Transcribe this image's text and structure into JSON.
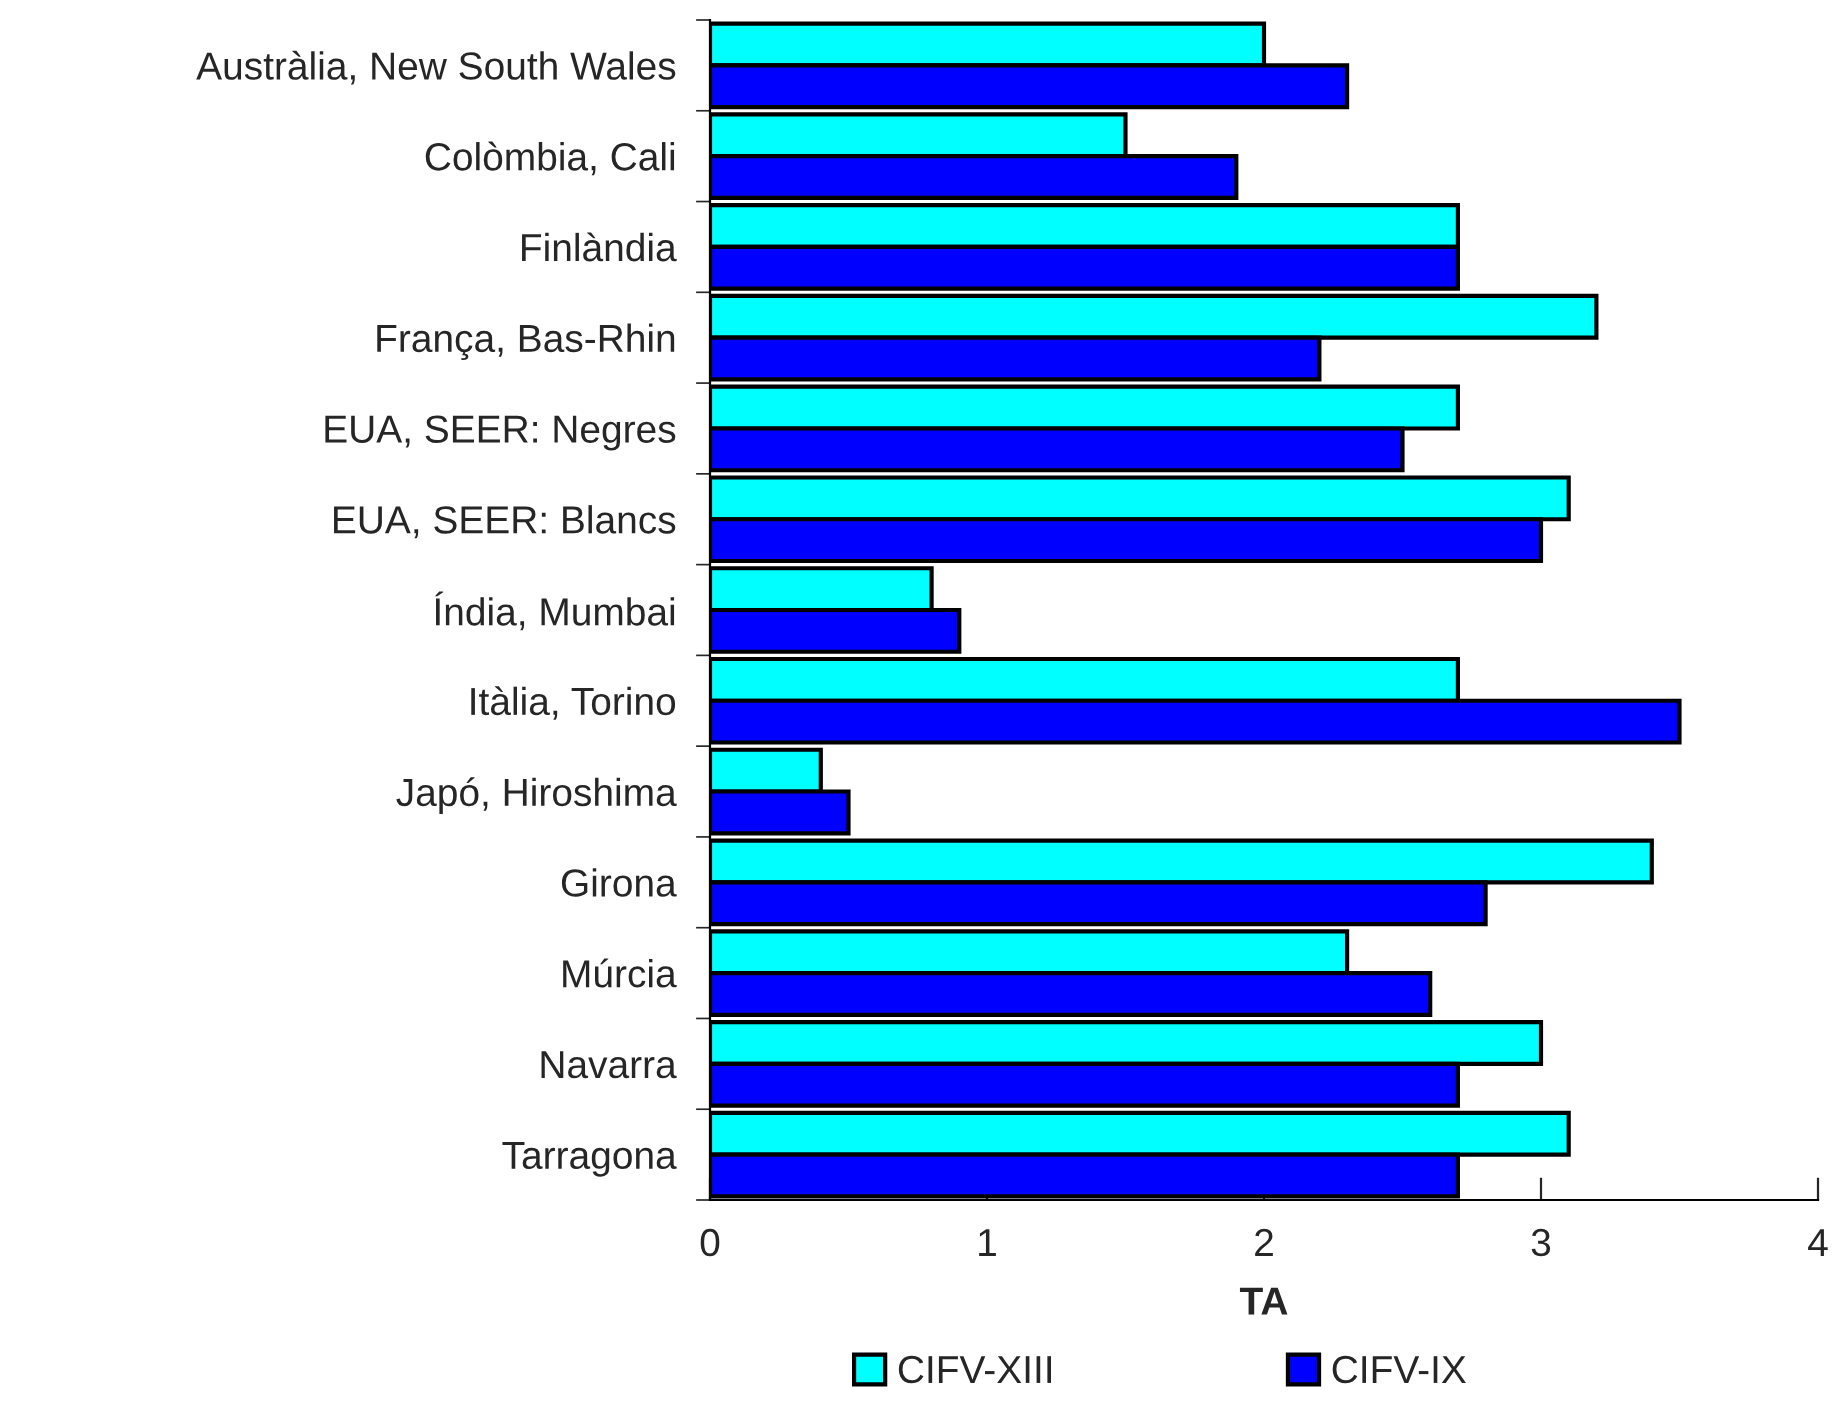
{
  "chart_data": {
    "type": "bar",
    "orientation": "horizontal",
    "xlabel": "TA",
    "categories": [
      "Austràlia, New South Wales",
      "Colòmbia, Cali",
      "Finlàndia",
      "França, Bas-Rhin",
      "EUA, SEER: Negres",
      "EUA, SEER: Blancs",
      "Índia, Mumbai",
      "Itàlia, Torino",
      "Japó, Hiroshima",
      "Girona",
      "Múrcia",
      "Navarra",
      "Tarragona"
    ],
    "series": [
      {
        "name": "CIFV-XIII",
        "color": "#00ffff",
        "values": [
          2.0,
          1.5,
          2.7,
          3.2,
          2.7,
          3.1,
          0.8,
          2.7,
          0.4,
          3.4,
          2.3,
          3.0,
          3.1
        ]
      },
      {
        "name": "CIFV-IX",
        "color": "#0000ff",
        "values": [
          2.3,
          1.9,
          2.7,
          2.2,
          2.5,
          3.0,
          0.9,
          3.5,
          0.5,
          2.8,
          2.6,
          2.7,
          2.7
        ]
      }
    ],
    "xlim": [
      0,
      4
    ],
    "xticks": [
      0,
      1,
      2,
      3,
      4
    ],
    "grid": false,
    "legend": "bottom"
  }
}
